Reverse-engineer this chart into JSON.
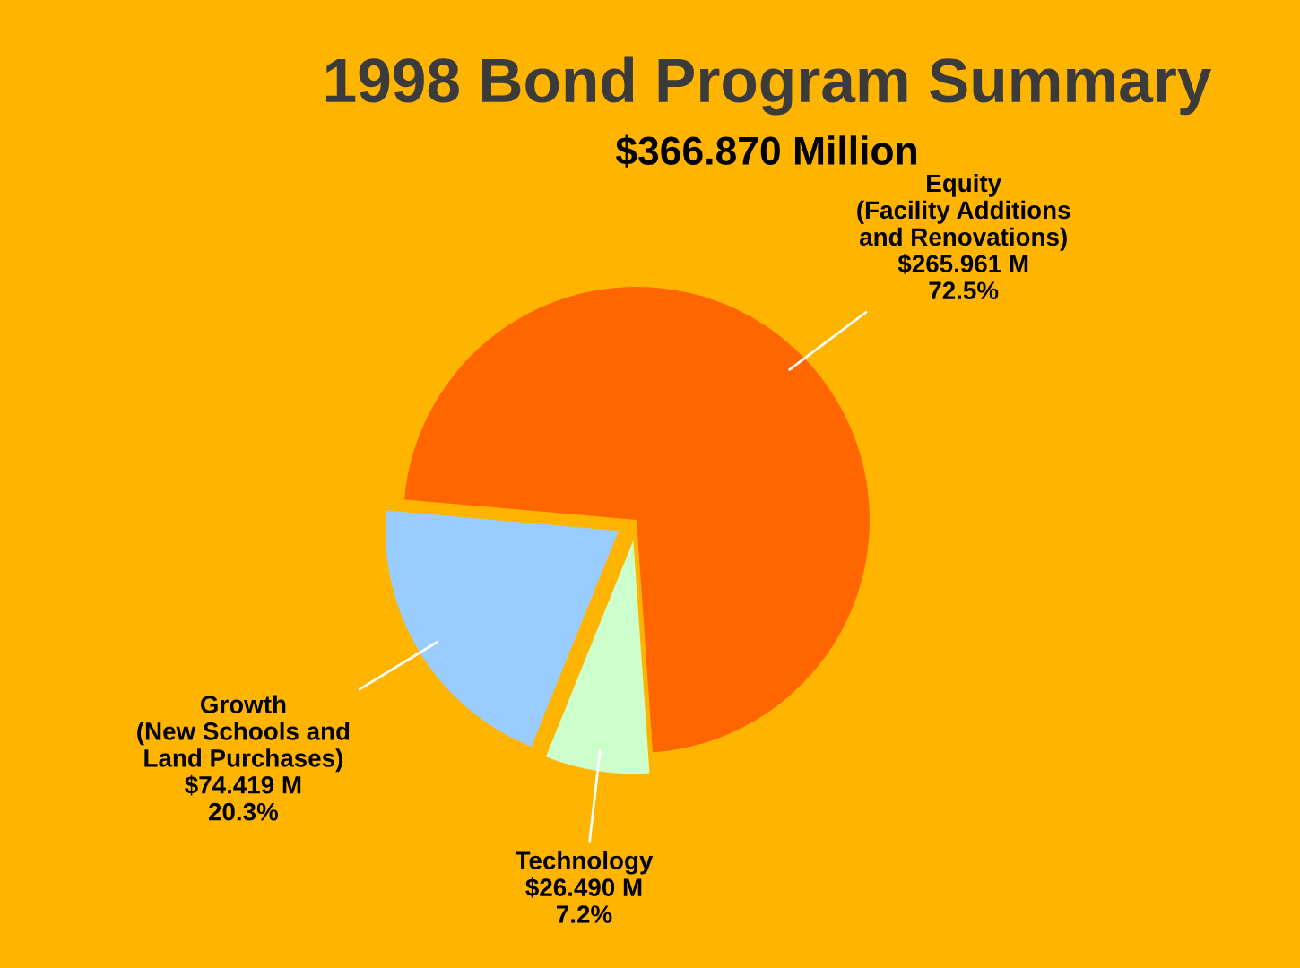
{
  "chart_data": {
    "type": "pie",
    "title": "1998 Bond Program Summary",
    "subtitle": "$366.870 Million",
    "categories": [
      "Equity\n(Facility Additions\nand Renovations)",
      "Growth\n(New Schools and\nLand Purchases)",
      "Technology"
    ],
    "values": [
      265.961,
      74.419,
      26.49
    ],
    "value_labels": [
      "$265.961 M\n72.5%",
      "$74.419 M\n20.3%",
      "$26.490 M\n7.2%"
    ],
    "colors": [
      "#ff6600",
      "#99ccff",
      "#ccffcc"
    ]
  }
}
